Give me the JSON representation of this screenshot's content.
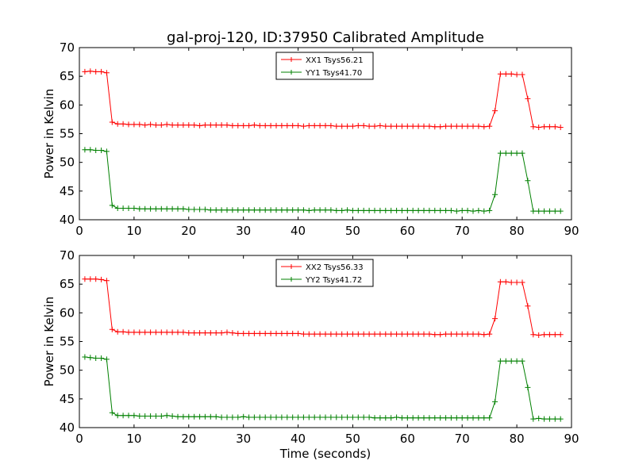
{
  "figure": {
    "title": "gal-proj-120, ID:37950 Calibrated Amplitude"
  },
  "chart_data": [
    {
      "type": "line",
      "title": "gal-proj-120, ID:37950 Calibrated Amplitude",
      "xlabel": "",
      "ylabel": "Power in Kelvin",
      "xlim": [
        0,
        90
      ],
      "ylim": [
        40,
        70
      ],
      "xticks": [
        0,
        10,
        20,
        30,
        40,
        50,
        60,
        70,
        80,
        90
      ],
      "yticks": [
        40,
        45,
        50,
        55,
        60,
        65,
        70
      ],
      "grid": false,
      "legend_position": "top-center",
      "marker": "+",
      "x": [
        1,
        2,
        3,
        4,
        5,
        6,
        7,
        8,
        9,
        10,
        11,
        12,
        13,
        14,
        15,
        16,
        17,
        18,
        19,
        20,
        21,
        22,
        23,
        24,
        25,
        26,
        27,
        28,
        29,
        30,
        31,
        32,
        33,
        34,
        35,
        36,
        37,
        38,
        39,
        40,
        41,
        42,
        43,
        44,
        45,
        46,
        47,
        48,
        49,
        50,
        51,
        52,
        53,
        54,
        55,
        56,
        57,
        58,
        59,
        60,
        61,
        62,
        63,
        64,
        65,
        66,
        67,
        68,
        69,
        70,
        71,
        72,
        73,
        74,
        75,
        76,
        77,
        78,
        79,
        80,
        81,
        82,
        83,
        84,
        85,
        86,
        87,
        88
      ],
      "series": [
        {
          "name": "XX1 Tsys56.21",
          "color": "#ff0000",
          "values": [
            65.8,
            65.9,
            65.8,
            65.8,
            65.6,
            57.0,
            56.7,
            56.7,
            56.6,
            56.6,
            56.6,
            56.5,
            56.6,
            56.5,
            56.5,
            56.6,
            56.5,
            56.5,
            56.5,
            56.5,
            56.5,
            56.4,
            56.5,
            56.5,
            56.5,
            56.5,
            56.5,
            56.4,
            56.4,
            56.4,
            56.4,
            56.5,
            56.4,
            56.4,
            56.4,
            56.4,
            56.4,
            56.4,
            56.4,
            56.4,
            56.3,
            56.4,
            56.4,
            56.4,
            56.4,
            56.4,
            56.3,
            56.3,
            56.3,
            56.3,
            56.4,
            56.4,
            56.3,
            56.3,
            56.4,
            56.3,
            56.3,
            56.3,
            56.3,
            56.3,
            56.3,
            56.3,
            56.3,
            56.3,
            56.2,
            56.2,
            56.3,
            56.3,
            56.3,
            56.3,
            56.3,
            56.3,
            56.3,
            56.2,
            56.3,
            59.0,
            65.4,
            65.4,
            65.4,
            65.3,
            65.3,
            61.1,
            56.2,
            56.1,
            56.2,
            56.2,
            56.2,
            56.1
          ]
        },
        {
          "name": "YY1 Tsys41.70",
          "color": "#008000",
          "values": [
            52.2,
            52.2,
            52.1,
            52.1,
            51.9,
            42.5,
            42.0,
            42.0,
            42.0,
            42.0,
            41.9,
            41.9,
            41.9,
            41.9,
            41.9,
            41.9,
            41.9,
            41.9,
            41.9,
            41.8,
            41.8,
            41.8,
            41.8,
            41.7,
            41.7,
            41.7,
            41.7,
            41.7,
            41.7,
            41.7,
            41.7,
            41.7,
            41.7,
            41.7,
            41.7,
            41.7,
            41.7,
            41.7,
            41.7,
            41.7,
            41.7,
            41.6,
            41.7,
            41.7,
            41.7,
            41.7,
            41.6,
            41.6,
            41.7,
            41.6,
            41.6,
            41.6,
            41.6,
            41.6,
            41.6,
            41.6,
            41.6,
            41.6,
            41.6,
            41.6,
            41.6,
            41.6,
            41.6,
            41.6,
            41.6,
            41.6,
            41.6,
            41.6,
            41.5,
            41.6,
            41.6,
            41.5,
            41.6,
            41.5,
            41.6,
            44.4,
            51.6,
            51.6,
            51.6,
            51.6,
            51.6,
            46.8,
            41.5,
            41.5,
            41.5,
            41.5,
            41.5,
            41.5
          ]
        }
      ]
    },
    {
      "type": "line",
      "title": "",
      "xlabel": "Time (seconds)",
      "ylabel": "Power in Kelvin",
      "xlim": [
        0,
        90
      ],
      "ylim": [
        40,
        70
      ],
      "xticks": [
        0,
        10,
        20,
        30,
        40,
        50,
        60,
        70,
        80,
        90
      ],
      "yticks": [
        40,
        45,
        50,
        55,
        60,
        65,
        70
      ],
      "grid": false,
      "legend_position": "top-center",
      "marker": "+",
      "x": [
        1,
        2,
        3,
        4,
        5,
        6,
        7,
        8,
        9,
        10,
        11,
        12,
        13,
        14,
        15,
        16,
        17,
        18,
        19,
        20,
        21,
        22,
        23,
        24,
        25,
        26,
        27,
        28,
        29,
        30,
        31,
        32,
        33,
        34,
        35,
        36,
        37,
        38,
        39,
        40,
        41,
        42,
        43,
        44,
        45,
        46,
        47,
        48,
        49,
        50,
        51,
        52,
        53,
        54,
        55,
        56,
        57,
        58,
        59,
        60,
        61,
        62,
        63,
        64,
        65,
        66,
        67,
        68,
        69,
        70,
        71,
        72,
        73,
        74,
        75,
        76,
        77,
        78,
        79,
        80,
        81,
        82,
        83,
        84,
        85,
        86,
        87,
        88
      ],
      "series": [
        {
          "name": "XX2 Tsys56.33",
          "color": "#ff0000",
          "values": [
            65.9,
            65.9,
            65.9,
            65.8,
            65.6,
            57.1,
            56.7,
            56.7,
            56.6,
            56.6,
            56.6,
            56.6,
            56.6,
            56.6,
            56.6,
            56.6,
            56.6,
            56.6,
            56.6,
            56.5,
            56.5,
            56.5,
            56.5,
            56.5,
            56.5,
            56.5,
            56.6,
            56.5,
            56.4,
            56.4,
            56.4,
            56.4,
            56.4,
            56.4,
            56.4,
            56.4,
            56.4,
            56.4,
            56.4,
            56.4,
            56.3,
            56.3,
            56.3,
            56.3,
            56.3,
            56.3,
            56.3,
            56.3,
            56.3,
            56.3,
            56.3,
            56.3,
            56.3,
            56.3,
            56.3,
            56.3,
            56.3,
            56.3,
            56.3,
            56.3,
            56.3,
            56.3,
            56.3,
            56.3,
            56.2,
            56.2,
            56.3,
            56.3,
            56.3,
            56.3,
            56.3,
            56.3,
            56.3,
            56.2,
            56.3,
            59.0,
            65.4,
            65.4,
            65.3,
            65.3,
            65.3,
            61.2,
            56.2,
            56.1,
            56.2,
            56.2,
            56.2,
            56.2
          ]
        },
        {
          "name": "YY2 Tsys41.72",
          "color": "#008000",
          "values": [
            52.3,
            52.2,
            52.1,
            52.1,
            51.9,
            42.6,
            42.1,
            42.1,
            42.1,
            42.1,
            42.0,
            42.0,
            42.0,
            42.0,
            42.0,
            42.1,
            42.0,
            41.9,
            41.9,
            41.9,
            41.9,
            41.9,
            41.9,
            41.9,
            41.9,
            41.8,
            41.8,
            41.8,
            41.8,
            41.9,
            41.8,
            41.8,
            41.8,
            41.8,
            41.8,
            41.8,
            41.8,
            41.8,
            41.8,
            41.8,
            41.8,
            41.8,
            41.8,
            41.8,
            41.8,
            41.8,
            41.8,
            41.8,
            41.8,
            41.8,
            41.8,
            41.8,
            41.8,
            41.7,
            41.7,
            41.7,
            41.7,
            41.8,
            41.7,
            41.7,
            41.7,
            41.7,
            41.7,
            41.7,
            41.7,
            41.7,
            41.7,
            41.7,
            41.7,
            41.7,
            41.7,
            41.7,
            41.7,
            41.7,
            41.7,
            44.5,
            51.6,
            51.6,
            51.6,
            51.6,
            51.6,
            47.0,
            41.5,
            41.6,
            41.5,
            41.5,
            41.5,
            41.5
          ]
        }
      ]
    }
  ]
}
